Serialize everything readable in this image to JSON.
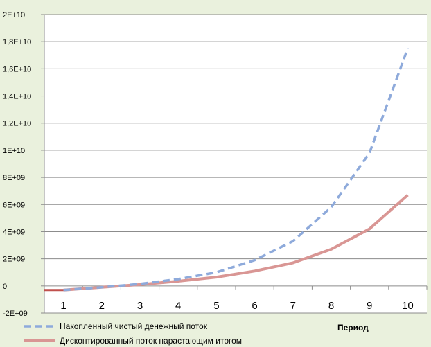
{
  "chart_data": {
    "type": "line",
    "x": [
      1,
      2,
      3,
      4,
      5,
      6,
      7,
      8,
      9,
      10
    ],
    "categories": [
      "1",
      "2",
      "3",
      "4",
      "5",
      "6",
      "7",
      "8",
      "9",
      "10"
    ],
    "ylim": [
      -2000000000,
      20000000000
    ],
    "yticks": [
      -2000000000,
      0,
      2000000000,
      4000000000,
      6000000000,
      8000000000,
      10000000000,
      12000000000,
      14000000000,
      16000000000,
      18000000000,
      20000000000
    ],
    "ytick_labels": [
      "-2E+09",
      "0",
      "2E+09",
      "4E+09",
      "6E+09",
      "8E+09",
      "1E+10",
      "1,2E+10",
      "1,4E+10",
      "1,6E+10",
      "1,8E+10",
      "2E+10"
    ],
    "xlabel": "Период",
    "ylabel": "",
    "grid": true,
    "legend_position": "bottom",
    "series": [
      {
        "name": "Накопленный чистый денежный поток",
        "values": [
          -300000000,
          -100000000,
          150000000,
          500000000,
          1000000000,
          1900000000,
          3300000000,
          5800000000,
          9800000000,
          17500000000
        ],
        "color": "#8eaadb",
        "style": "dashed"
      },
      {
        "name": "Дисконтированный поток нарастающим итогом",
        "values": [
          -300000000,
          -100000000,
          100000000,
          350000000,
          650000000,
          1100000000,
          1700000000,
          2700000000,
          4200000000,
          6700000000
        ],
        "color": "#d99694",
        "style": "solid"
      }
    ],
    "extra_segment": {
      "note": "short dark-red stub before period 1",
      "color": "#c0504d"
    }
  }
}
